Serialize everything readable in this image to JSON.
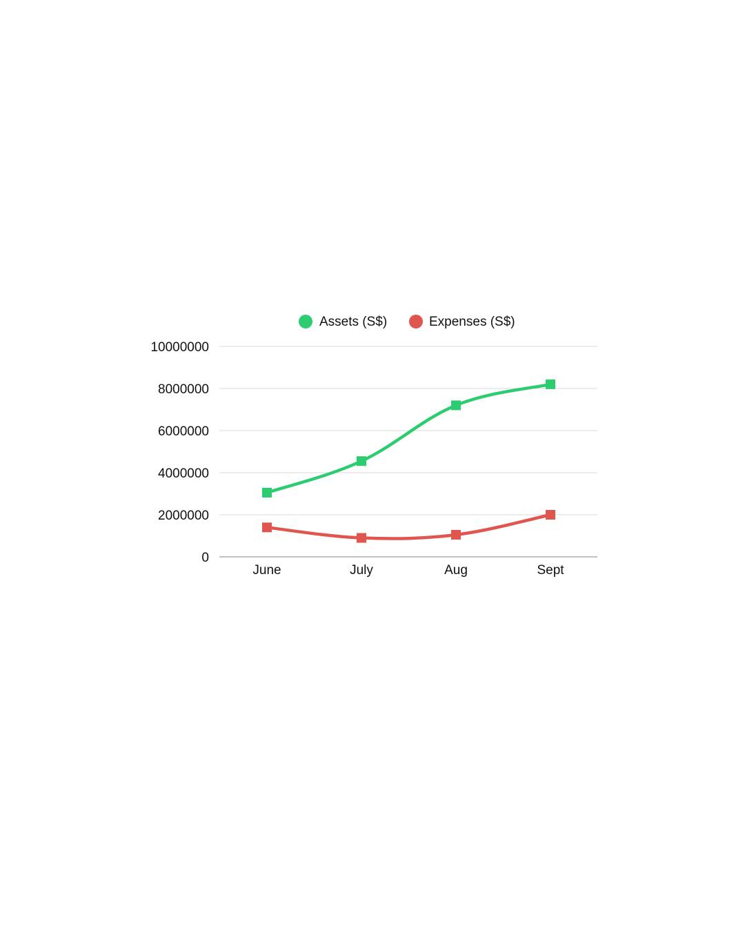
{
  "chart_data": {
    "type": "line",
    "categories": [
      "June",
      "July",
      "Aug",
      "Sept"
    ],
    "series": [
      {
        "name": "Assets (S$)",
        "color": "#2ecc71",
        "values": [
          3050000,
          4550000,
          7200000,
          8200000
        ]
      },
      {
        "name": "Expenses (S$)",
        "color": "#e0554e",
        "values": [
          1400000,
          900000,
          1050000,
          2000000
        ]
      }
    ],
    "yticks": [
      "0",
      "2000000",
      "4000000",
      "6000000",
      "8000000",
      "10000000"
    ],
    "ylim": [
      0,
      10000000
    ],
    "grid": true,
    "legend_position": "top-center",
    "marker": "square",
    "smooth": true
  }
}
